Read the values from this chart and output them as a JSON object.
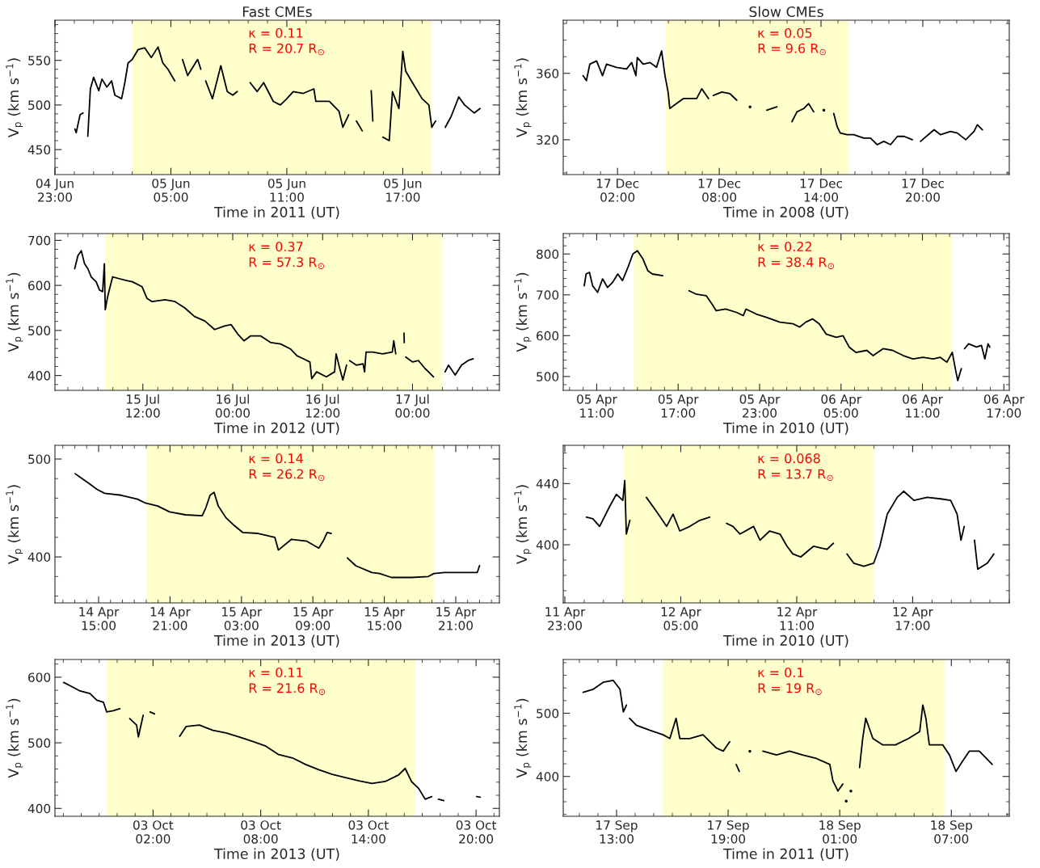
{
  "chart_data": [
    {
      "type": "line",
      "title": "Fast CMEs",
      "xlabel": "Time in 2011 (UT)",
      "ylabel": "V$_{p}$ (km s$^{−1}$)",
      "xlim": [
        "2011-06-04T23:00",
        "2011-06-05T22:00"
      ],
      "xticks": [
        {
          "value": "2011-06-04T23:00",
          "label": "04 Jun\n23:00"
        },
        {
          "value": "2011-06-05T05:00",
          "label": "05 Jun\n05:00"
        },
        {
          "value": "2011-06-05T11:00",
          "label": "05 Jun\n11:00"
        },
        {
          "value": "2011-06-05T17:00",
          "label": "05 Jun\n17:00"
        }
      ],
      "ylim": [
        422,
        595
      ],
      "yticks": [
        450,
        500,
        550
      ],
      "bands": [
        {
          "axis": "x",
          "from": "2011-06-05T03:00",
          "to": "2011-06-05T18:30",
          "color": "#ffffcc"
        }
      ],
      "annotations": [
        "κ = 0.11",
        "R = 20.7 R$_{⊙}$"
      ],
      "series": [
        {
          "color": "#000000",
          "x": [
            "2011-06-05T00:02",
            "2011-06-05T00:06",
            "2011-06-05T00:18",
            "2011-06-05T00:27",
            "2011-06-05T00:36",
            "2011-06-05T00:42",
            "2011-06-05T00:50",
            "2011-06-05T01:00",
            "2011-06-05T01:16",
            "2011-06-05T01:26",
            "2011-06-05T01:41",
            "2011-06-05T01:56",
            "2011-06-05T02:06",
            "2011-06-05T02:17",
            "2011-06-05T02:27",
            "2011-06-05T02:37",
            "2011-06-05T02:47",
            "2011-06-05T03:00",
            "2011-06-05T03:18",
            "2011-06-05T03:39",
            "2011-06-05T03:59",
            "2011-06-05T04:20",
            "2011-06-05T04:35",
            "2011-06-05T04:51",
            "2011-06-05T05:12",
            "2011-06-05T05:24",
            "2011-06-05T05:36",
            "2011-06-05T05:52",
            "2011-06-05T06:23",
            "2011-06-05T06:33",
            "2011-06-05T06:42",
            "2011-06-05T06:48",
            "2011-06-05T07:09",
            "2011-06-05T07:35",
            "2011-06-05T07:55",
            "2011-06-05T08:12",
            "2011-06-05T08:26",
            "2011-06-05T08:48",
            "2011-06-05T09:06",
            "2011-06-05T09:28",
            "2011-06-05T09:48",
            "2011-06-05T10:18",
            "2011-06-05T10:40",
            "2011-06-05T11:00",
            "2011-06-05T11:20",
            "2011-06-05T11:51",
            "2011-06-05T12:24",
            "2011-06-05T12:30",
            "2011-06-05T13:12",
            "2011-06-05T13:42",
            "2011-06-05T13:54",
            "2011-06-05T14:12",
            "2011-06-05T14:24",
            "2011-06-05T14:36",
            "2011-06-05T14:54",
            "2011-06-05T15:06",
            "2011-06-05T15:22",
            "2011-06-05T15:27",
            "2011-06-05T15:42",
            "2011-06-05T15:58",
            "2011-06-05T16:18",
            "2011-06-05T16:28",
            "2011-06-05T16:48",
            "2011-06-05T17:00",
            "2011-06-05T17:09",
            "2011-06-05T17:30",
            "2011-06-05T18:00",
            "2011-06-05T18:21",
            "2011-06-05T18:30",
            "2011-06-05T18:42",
            "2011-06-05T18:54",
            "2011-06-05T19:12",
            "2011-06-05T19:30",
            "2011-06-05T19:54",
            "2011-06-05T20:12",
            "2011-06-05T20:42",
            "2011-06-05T21:00"
          ],
          "values": [
            473,
            469,
            489,
            491,
            null,
            465,
            518,
            531,
            516,
            529,
            520,
            527,
            511,
            509,
            507,
            525,
            547,
            551,
            562,
            564,
            553,
            565,
            547,
            540,
            527,
            null,
            551,
            533,
            551,
            540,
            null,
            527,
            507,
            544,
            515,
            511,
            515,
            null,
            525,
            515,
            525,
            504,
            500,
            507,
            515,
            513,
            518,
            504,
            504,
            493,
            475,
            489,
            null,
            482,
            471,
            null,
            516,
            482,
            null,
            464,
            460,
            515,
            496,
            560,
            538,
            525,
            507,
            500,
            475,
            482,
            null,
            475,
            487,
            509,
            500,
            491,
            496
          ]
        }
      ]
    },
    {
      "type": "line",
      "title": "Slow CMEs",
      "xlabel": "Time in 2008 (UT)",
      "ylabel": "V$_{p}$ (km s$^{−1}$)",
      "xlim": [
        "2008-12-16T22:48",
        "2008-12-18T01:06"
      ],
      "xticks": [
        {
          "value": "2008-12-17T02:00",
          "label": "17 Dec\n02:00"
        },
        {
          "value": "2008-12-17T08:00",
          "label": "17 Dec\n08:00"
        },
        {
          "value": "2008-12-17T14:00",
          "label": "17 Dec\n14:00"
        },
        {
          "value": "2008-12-17T20:00",
          "label": "17 Dec\n20:00"
        }
      ],
      "ylim": [
        299,
        392
      ],
      "yticks": [
        320,
        360
      ],
      "bands": [
        {
          "axis": "x",
          "from": "2008-12-17T04:50",
          "to": "2008-12-17T15:38",
          "color": "#ffffcc"
        }
      ],
      "annotations": [
        "κ = 0.05",
        "R = 9.6 R$_{⊙}$"
      ],
      "series": [
        {
          "color": "#000000",
          "x": [
            "2008-12-16T23:58",
            "2008-12-17T00:10",
            "2008-12-17T00:22",
            "2008-12-17T00:46",
            "2008-12-17T01:07",
            "2008-12-17T01:21",
            "2008-12-17T01:56",
            "2008-12-17T02:32",
            "2008-12-17T02:50",
            "2008-12-17T03:05",
            "2008-12-17T03:10",
            "2008-12-17T03:31",
            "2008-12-17T03:55",
            "2008-12-17T04:18",
            "2008-12-17T04:36",
            "2008-12-17T04:48",
            "2008-12-17T04:59",
            "2008-12-17T05:05",
            "2008-12-17T05:29",
            "2008-12-17T05:53",
            "2008-12-17T06:17",
            "2008-12-17T06:40",
            "2008-12-17T06:58",
            "2008-12-17T07:22",
            "2008-12-17T07:30",
            "2008-12-17T07:39",
            "2008-12-17T08:09",
            "2008-12-17T08:38",
            "2008-12-17T09:02",
            "2008-12-17T09:24",
            "2008-12-17T09:49",
            "2008-12-17T10:18",
            "2008-12-17T10:48",
            "2008-12-17T11:24",
            "2008-12-17T11:54",
            "2008-12-17T12:17",
            "2008-12-17T12:35",
            "2008-12-17T12:59",
            "2008-12-17T13:16",
            "2008-12-17T13:34",
            "2008-12-17T13:54",
            "2008-12-17T14:10",
            "2008-12-17T14:30",
            "2008-12-17T14:45",
            "2008-12-17T14:57",
            "2008-12-17T15:08",
            "2008-12-17T15:32",
            "2008-12-17T15:56",
            "2008-12-17T16:31",
            "2008-12-17T16:55",
            "2008-12-17T17:19",
            "2008-12-17T17:42",
            "2008-12-17T18:06",
            "2008-12-17T18:30",
            "2008-12-17T18:54",
            "2008-12-17T19:23",
            "2008-12-17T19:36",
            "2008-12-17T19:52",
            "2008-12-17T20:40",
            "2008-12-17T21:03",
            "2008-12-17T21:38",
            "2008-12-17T22:02",
            "2008-12-17T22:32",
            "2008-12-17T23:01",
            "2008-12-17T23:13",
            "2008-12-17T23:31"
          ],
          "values": [
            358.6,
            355.6,
            365.5,
            367.5,
            358.6,
            365.5,
            363.6,
            362.6,
            366.5,
            358.6,
            369.5,
            365.5,
            366.5,
            363.6,
            373.5,
            358.6,
            348.7,
            338.8,
            341.8,
            344.8,
            344.8,
            344.8,
            350.7,
            344.8,
            null,
            346.7,
            348.7,
            347.7,
            343.8,
            null,
            339.8,
            null,
            337.8,
            339.8,
            null,
            330.9,
            336.8,
            338.8,
            341.8,
            336.8,
            null,
            337.8,
            null,
            335.8,
            327.9,
            324,
            323,
            323,
            321,
            321,
            317,
            319,
            317,
            322,
            322,
            320,
            null,
            319,
            326,
            323,
            325,
            324,
            320,
            325,
            329,
            326
          ]
        }
      ]
    },
    {
      "type": "line",
      "xlabel": "Time in 2012 (UT)",
      "ylabel": "V$_{p}$ (km s$^{−1}$)",
      "xlim": [
        "2012-07-15T00:16",
        "2012-07-17T11:36"
      ],
      "xticks": [
        {
          "value": "2012-07-15T12:00",
          "label": "15 Jul\n12:00"
        },
        {
          "value": "2012-07-16T00:00",
          "label": "16 Jul\n00:00"
        },
        {
          "value": "2012-07-16T12:00",
          "label": "16 Jul\n12:00"
        },
        {
          "value": "2012-07-17T00:00",
          "label": "17 Jul\n00:00"
        }
      ],
      "ylim": [
        367,
        715
      ],
      "yticks": [
        400,
        500,
        600,
        700
      ],
      "bands": [
        {
          "axis": "x",
          "from": "2012-07-15T06:59",
          "to": "2012-07-17T03:54",
          "color": "#ffffcc"
        }
      ],
      "annotations": [
        "κ = 0.37",
        "R = 57.3 R$_{⊙}$"
      ],
      "series": [
        {
          "color": "#000000",
          "x": [
            "2012-07-15T02:54",
            "2012-07-15T03:20",
            "2012-07-15T03:47",
            "2012-07-15T04:13",
            "2012-07-15T04:40",
            "2012-07-15T05:06",
            "2012-07-15T05:46",
            "2012-07-15T06:12",
            "2012-07-15T06:38",
            "2012-07-15T06:52",
            "2012-07-15T06:59",
            "2012-07-15T07:18",
            "2012-07-15T07:58",
            "2012-07-15T08:50",
            "2012-07-15T09:42",
            "2012-07-15T10:36",
            "2012-07-15T11:54",
            "2012-07-15T12:34",
            "2012-07-15T13:14",
            "2012-07-15T14:59",
            "2012-07-15T16:18",
            "2012-07-15T17:36",
            "2012-07-15T18:54",
            "2012-07-15T20:16",
            "2012-07-15T21:35",
            "2012-07-15T22:54",
            "2012-07-15T23:47",
            "2012-07-16T00:40",
            "2012-07-16T01:30",
            "2012-07-16T02:24",
            "2012-07-16T03:42",
            "2012-07-16T05:06",
            "2012-07-16T06:24",
            "2012-07-16T07:42",
            "2012-07-16T08:34",
            "2012-07-16T09:27",
            "2012-07-16T10:18",
            "2012-07-16T10:33",
            "2012-07-16T11:12",
            "2012-07-16T12:30",
            "2012-07-16T13:36",
            "2012-07-16T13:48",
            "2012-07-16T14:18",
            "2012-07-16T14:42",
            "2012-07-16T15:12",
            "2012-07-16T15:24",
            "2012-07-16T15:36",
            "2012-07-16T16:30",
            "2012-07-16T17:24",
            "2012-07-16T17:36",
            "2012-07-16T17:48",
            "2012-07-16T18:42",
            "2012-07-16T20:00",
            "2012-07-16T21:18",
            "2012-07-16T21:30",
            "2012-07-16T21:46",
            "2012-07-16T22:18",
            "2012-07-16T22:52",
            "2012-07-16T22:54",
            "2012-07-16T23:00",
            "2012-07-16T23:06",
            "2012-07-17T00:00",
            "2012-07-17T00:48",
            "2012-07-17T01:42",
            "2012-07-17T02:09",
            "2012-07-17T02:48",
            "2012-07-17T03:30",
            "2012-07-17T04:21",
            "2012-07-17T04:48",
            "2012-07-17T05:42",
            "2012-07-17T06:33",
            "2012-07-17T07:24",
            "2012-07-17T08:06"
          ],
          "values": [
            637,
            666,
            677,
            648,
            637,
            619,
            608,
            590,
            586,
            648,
            546,
            575,
            619,
            615,
            611,
            608,
            597,
            571,
            564,
            568,
            564,
            550,
            531,
            521,
            502,
            510,
            513,
            492,
            477,
            488,
            488,
            473,
            470,
            459,
            444,
            437,
            430,
            393,
            408,
            397,
            408,
            448,
            415,
            390,
            423,
            null,
            433,
            423,
            426,
            408,
            452,
            452,
            448,
            452,
            477,
            448,
            null,
            494,
            473,
            null,
            441,
            430,
            433,
            415,
            408,
            397,
            null,
            408,
            423,
            401,
            423,
            433,
            437
          ]
        }
      ]
    },
    {
      "type": "line",
      "xlabel": "Time in 2010 (UT)",
      "ylabel": "V$_{p}$ (km s$^{−1}$)",
      "xlim": [
        "2010-04-05T08:32",
        "2010-04-06T17:24"
      ],
      "xticks": [
        {
          "value": "2010-04-05T11:00",
          "label": "05 Apr\n11:00"
        },
        {
          "value": "2010-04-05T17:00",
          "label": "05 Apr\n17:00"
        },
        {
          "value": "2010-04-05T23:00",
          "label": "05 Apr\n23:00"
        },
        {
          "value": "2010-04-06T05:00",
          "label": "06 Apr\n05:00"
        },
        {
          "value": "2010-04-06T11:00",
          "label": "06 Apr\n11:00"
        },
        {
          "value": "2010-04-06T17:00",
          "label": "06 Apr\n17:00"
        }
      ],
      "ylim": [
        466,
        850
      ],
      "yticks": [
        500,
        600,
        700,
        800
      ],
      "bands": [
        {
          "axis": "x",
          "from": "2010-04-05T13:44",
          "to": "2010-04-06T13:12",
          "color": "#ffffcc"
        }
      ],
      "annotations": [
        "κ = 0.22",
        "R = 38.4 R$_{⊙}$"
      ],
      "series": [
        {
          "color": "#000000",
          "x": [
            "2010-04-05T10:05",
            "2010-04-05T10:13",
            "2010-04-05T10:28",
            "2010-04-05T10:42",
            "2010-04-05T11:04",
            "2010-04-05T11:26",
            "2010-04-05T11:48",
            "2010-04-05T12:11",
            "2010-04-05T12:33",
            "2010-04-05T12:54",
            "2010-04-05T13:18",
            "2010-04-05T13:40",
            "2010-04-05T14:00",
            "2010-04-05T14:24",
            "2010-04-05T14:46",
            "2010-04-05T15:06",
            "2010-04-05T15:52",
            "2010-04-05T16:48",
            "2010-04-05T17:48",
            "2010-04-05T18:18",
            "2010-04-05T19:04",
            "2010-04-05T19:34",
            "2010-04-05T19:48",
            "2010-04-05T20:30",
            "2010-04-05T21:18",
            "2010-04-05T21:48",
            "2010-04-05T22:00",
            "2010-04-05T22:45",
            "2010-04-05T23:30",
            "2010-04-06T00:30",
            "2010-04-06T01:28",
            "2010-04-06T01:57",
            "2010-04-06T02:24",
            "2010-04-06T02:54",
            "2010-04-06T03:24",
            "2010-04-06T03:54",
            "2010-04-06T04:39",
            "2010-04-06T05:09",
            "2010-04-06T05:36",
            "2010-04-06T06:06",
            "2010-04-06T06:54",
            "2010-04-06T07:22",
            "2010-04-06T08:06",
            "2010-04-06T08:48",
            "2010-04-06T09:36",
            "2010-04-06T10:18",
            "2010-04-06T11:03",
            "2010-04-06T11:48",
            "2010-04-06T12:18",
            "2010-04-06T12:48",
            "2010-04-06T13:12",
            "2010-04-06T13:24",
            "2010-04-06T13:36",
            "2010-04-06T13:52",
            "2010-04-06T14:00",
            "2010-04-06T14:06",
            "2010-04-06T14:24",
            "2010-04-06T14:59",
            "2010-04-06T15:21",
            "2010-04-06T15:36",
            "2010-04-06T15:50",
            "2010-04-06T15:58"
          ],
          "values": [
            722,
            751,
            755,
            722,
            706,
            739,
            718,
            731,
            751,
            735,
            767,
            800,
            808,
            788,
            759,
            751,
            747,
            null,
            710,
            702,
            698,
            674,
            661,
            665,
            657,
            649,
            665,
            653,
            645,
            633,
            629,
            621,
            633,
            641,
            629,
            604,
            596,
            600,
            572,
            559,
            564,
            551,
            568,
            564,
            551,
            543,
            547,
            543,
            547,
            535,
            559,
            523,
            490,
            519,
            null,
            568,
            580,
            572,
            576,
            543,
            580,
            572
          ]
        }
      ]
    },
    {
      "type": "line",
      "xlabel": "Time in 2013 (UT)",
      "ylabel": "V$_{p}$ (km s$^{−1}$)",
      "xlim": [
        "2013-04-14T11:20",
        "2013-04-16T00:40"
      ],
      "xticks": [
        {
          "value": "2013-04-14T15:00",
          "label": "14 Apr\n15:00"
        },
        {
          "value": "2013-04-14T21:00",
          "label": "14 Apr\n21:00"
        },
        {
          "value": "2013-04-15T03:00",
          "label": "15 Apr\n03:00"
        },
        {
          "value": "2013-04-15T09:00",
          "label": "15 Apr\n09:00"
        },
        {
          "value": "2013-04-15T15:00",
          "label": "15 Apr\n15:00"
        },
        {
          "value": "2013-04-15T21:00",
          "label": "15 Apr\n21:00"
        }
      ],
      "ylim": [
        353,
        514
      ],
      "yticks": [
        400,
        500
      ],
      "bands": [
        {
          "axis": "x",
          "from": "2013-04-14T19:00",
          "to": "2013-04-15T19:10",
          "color": "#ffffcc"
        }
      ],
      "annotations": [
        "κ = 0.14",
        "R = 26.2 R$_{⊙}$"
      ],
      "series": [
        {
          "color": "#000000",
          "x": [
            "2013-04-14T13:02",
            "2013-04-14T13:30",
            "2013-04-14T14:12",
            "2013-04-14T14:52",
            "2013-04-14T15:30",
            "2013-04-14T16:54",
            "2013-04-14T18:16",
            "2013-04-14T18:56",
            "2013-04-14T19:58",
            "2013-04-14T20:58",
            "2013-04-14T22:18",
            "2013-04-14T23:42",
            "2013-04-15T00:00",
            "2013-04-15T00:22",
            "2013-04-15T00:42",
            "2013-04-15T01:03",
            "2013-04-15T01:42",
            "2013-04-15T02:24",
            "2013-04-15T03:06",
            "2013-04-15T04:24",
            "2013-04-15T05:48",
            "2013-04-15T06:06",
            "2013-04-15T07:12",
            "2013-04-15T08:30",
            "2013-04-15T09:30",
            "2013-04-15T09:54",
            "2013-04-15T10:12",
            "2013-04-15T10:33",
            "2013-04-15T11:12",
            "2013-04-15T11:54",
            "2013-04-15T12:36",
            "2013-04-15T13:57",
            "2013-04-15T14:36",
            "2013-04-15T15:36",
            "2013-04-15T17:18",
            "2013-04-15T18:42",
            "2013-04-15T19:10",
            "2013-04-15T20:03",
            "2013-04-15T21:24",
            "2013-04-15T22:48",
            "2013-04-15T23:00"
          ],
          "values": [
            485,
            481,
            475,
            469,
            465,
            463,
            459,
            455,
            452,
            446,
            443,
            442,
            450,
            463,
            466,
            452,
            440,
            432,
            425,
            424,
            420,
            407,
            418,
            416,
            409,
            417,
            425,
            424,
            null,
            399,
            391,
            384,
            383,
            379,
            379,
            380,
            383,
            384,
            384,
            384,
            391
          ]
        }
      ]
    },
    {
      "type": "line",
      "xlabel": "Time in 2010 (UT)",
      "ylabel": "V$_{p}$ (km s$^{−1}$)",
      "xlim": [
        "2010-04-11T22:55",
        "2010-04-12T22:00"
      ],
      "xticks": [
        {
          "value": "2010-04-11T23:00",
          "label": "11 Apr\n23:00"
        },
        {
          "value": "2010-04-12T05:00",
          "label": "12 Apr\n05:00"
        },
        {
          "value": "2010-04-12T11:00",
          "label": "12 Apr\n11:00"
        },
        {
          "value": "2010-04-12T17:00",
          "label": "12 Apr\n17:00"
        }
      ],
      "ylim": [
        362,
        465
      ],
      "yticks": [
        400,
        440
      ],
      "bands": [
        {
          "axis": "x",
          "from": "2010-04-12T02:03",
          "to": "2010-04-12T15:00",
          "color": "#ffffcc"
        }
      ],
      "annotations": [
        "κ = 0.068",
        "R = 13.7 R$_{⊙}$"
      ],
      "series": [
        {
          "color": "#000000",
          "x": [
            "2010-04-12T00:07",
            "2010-04-12T00:27",
            "2010-04-12T00:48",
            "2010-04-12T01:19",
            "2010-04-12T01:40",
            "2010-04-12T02:00",
            "2010-04-12T02:06",
            "2010-04-12T02:11",
            "2010-04-12T02:22",
            "2010-04-12T02:48",
            "2010-04-12T03:13",
            "2010-04-12T03:44",
            "2010-04-12T04:16",
            "2010-04-12T04:36",
            "2010-04-12T04:57",
            "2010-04-12T05:28",
            "2010-04-12T05:59",
            "2010-04-12T06:30",
            "2010-04-12T06:54",
            "2010-04-12T07:22",
            "2010-04-12T07:42",
            "2010-04-12T08:04",
            "2010-04-12T08:46",
            "2010-04-12T09:06",
            "2010-04-12T09:36",
            "2010-04-12T10:08",
            "2010-04-12T10:30",
            "2010-04-12T10:48",
            "2010-04-12T11:12",
            "2010-04-12T11:52",
            "2010-04-12T12:34",
            "2010-04-12T12:54",
            "2010-04-12T13:12",
            "2010-04-12T13:36",
            "2010-04-12T13:57",
            "2010-04-12T14:28",
            "2010-04-12T14:59",
            "2010-04-12T15:18",
            "2010-04-12T15:41",
            "2010-04-12T16:12",
            "2010-04-12T16:32",
            "2010-04-12T17:04",
            "2010-04-12T17:45",
            "2010-04-12T18:27",
            "2010-04-12T18:58",
            "2010-04-12T19:18",
            "2010-04-12T19:30",
            "2010-04-12T19:40",
            "2010-04-12T19:54",
            "2010-04-12T20:12",
            "2010-04-12T20:22",
            "2010-04-12T20:52",
            "2010-04-12T21:12"
          ],
          "values": [
            418,
            417,
            412,
            425,
            433,
            429,
            442,
            407,
            416,
            null,
            431,
            422,
            412,
            420,
            409,
            412,
            416,
            418,
            null,
            414,
            412,
            407,
            412,
            403,
            409,
            407,
            399,
            394,
            392,
            399,
            397,
            401,
            null,
            394,
            388,
            386,
            388,
            399,
            420,
            431,
            435,
            429,
            431,
            430,
            429,
            420,
            403,
            412,
            null,
            403,
            384,
            388,
            394
          ]
        }
      ]
    },
    {
      "type": "line",
      "xlabel": "Time in 2013 (UT)",
      "ylabel": "V$_{p}$ (km s$^{−1}$)",
      "xlim": [
        "2013-10-02T20:32",
        "2013-10-03T21:18"
      ],
      "xticks": [
        {
          "value": "2013-10-03T02:00",
          "label": "03 Oct\n02:00"
        },
        {
          "value": "2013-10-03T08:00",
          "label": "03 Oct\n08:00"
        },
        {
          "value": "2013-10-03T14:00",
          "label": "03 Oct\n14:00"
        },
        {
          "value": "2013-10-03T20:00",
          "label": "03 Oct\n20:00"
        }
      ],
      "ylim": [
        388,
        627
      ],
      "yticks": [
        400,
        500,
        600
      ],
      "bands": [
        {
          "axis": "x",
          "from": "2013-10-02T23:25",
          "to": "2013-10-03T16:36",
          "color": "#ffffcc"
        }
      ],
      "annotations": [
        "κ = 0.11",
        "R = 21.6 R$_{⊙}$"
      ],
      "series": [
        {
          "color": "#000000",
          "x": [
            "2013-10-02T21:01",
            "2013-10-02T21:23",
            "2013-10-02T21:56",
            "2013-10-02T22:29",
            "2013-10-02T22:52",
            "2013-10-02T23:14",
            "2013-10-02T23:25",
            "2013-10-02T23:47",
            "2013-10-03T00:09",
            "2013-10-03T00:24",
            "2013-10-03T00:42",
            "2013-10-03T01:05",
            "2013-10-03T01:11",
            "2013-10-03T01:27",
            "2013-10-03T01:42",
            "2013-10-03T01:50",
            "2013-10-03T02:05",
            "2013-10-03T02:30",
            "2013-10-03T03:29",
            "2013-10-03T03:51",
            "2013-10-03T04:35",
            "2013-10-03T05:20",
            "2013-10-03T06:04",
            "2013-10-03T06:48",
            "2013-10-03T07:33",
            "2013-10-03T08:17",
            "2013-10-03T09:00",
            "2013-10-03T09:46",
            "2013-10-03T10:30",
            "2013-10-03T11:14",
            "2013-10-03T11:59",
            "2013-10-03T12:43",
            "2013-10-03T13:28",
            "2013-10-03T14:12",
            "2013-10-03T14:56",
            "2013-10-03T15:41",
            "2013-10-03T16:03",
            "2013-10-03T16:24",
            "2013-10-03T16:47",
            "2013-10-03T17:10",
            "2013-10-03T17:32",
            "2013-10-03T17:42",
            "2013-10-03T17:54",
            "2013-10-03T18:12",
            "2013-10-03T18:30",
            "2013-10-03T19:00",
            "2013-10-03T20:02",
            "2013-10-03T20:14"
          ],
          "values": [
            592,
            587,
            579,
            575,
            565,
            562,
            547,
            549,
            552,
            null,
            537,
            527,
            509,
            542,
            null,
            547,
            544,
            null,
            510,
            525,
            527,
            519,
            515,
            509,
            502,
            495,
            482,
            477,
            467,
            459,
            452,
            447,
            442,
            438,
            441,
            451,
            461,
            441,
            431,
            414,
            418,
            null,
            414,
            412,
            null,
            null,
            418,
            417
          ]
        }
      ]
    },
    {
      "type": "line",
      "xlabel": "Time in 2011 (UT)",
      "ylabel": "V$_{p}$ (km s$^{−1}$)",
      "xlim": [
        "2011-09-17T10:08",
        "2011-09-18T10:07"
      ],
      "xticks": [
        {
          "value": "2011-09-17T13:00",
          "label": "17 Sep\n13:00"
        },
        {
          "value": "2011-09-17T19:00",
          "label": "17 Sep\n19:00"
        },
        {
          "value": "2011-09-18T01:00",
          "label": "18 Sep\n01:00"
        },
        {
          "value": "2011-09-18T07:00",
          "label": "18 Sep\n07:00"
        }
      ],
      "ylim": [
        337,
        585
      ],
      "yticks": [
        400,
        500
      ],
      "bands": [
        {
          "axis": "x",
          "from": "2011-09-17T15:30",
          "to": "2011-09-18T06:38",
          "color": "#ffffcc"
        }
      ],
      "annotations": [
        "κ = 0.1",
        "R = 19 R$_{⊙}$"
      ],
      "series": [
        {
          "color": "#000000",
          "x": [
            "2011-09-17T11:12",
            "2011-09-17T11:45",
            "2011-09-17T12:17",
            "2011-09-17T12:49",
            "2011-09-17T13:11",
            "2011-09-17T13:22",
            "2011-09-17T13:32",
            "2011-09-17T13:36",
            "2011-09-17T13:42",
            "2011-09-17T14:04",
            "2011-09-17T14:48",
            "2011-09-17T15:30",
            "2011-09-17T15:52",
            "2011-09-17T16:12",
            "2011-09-17T16:24",
            "2011-09-17T16:56",
            "2011-09-17T17:39",
            "2011-09-17T18:22",
            "2011-09-17T18:44",
            "2011-09-17T19:05",
            "2011-09-17T19:18",
            "2011-09-17T19:26",
            "2011-09-17T19:36",
            "2011-09-17T19:54",
            "2011-09-17T20:10",
            "2011-09-17T20:30",
            "2011-09-17T20:52",
            "2011-09-17T21:36",
            "2011-09-17T22:18",
            "2011-09-17T23:00",
            "2011-09-17T23:42",
            "2011-09-18T00:28",
            "2011-09-18T00:38",
            "2011-09-18T00:54",
            "2011-09-18T01:10",
            "2011-09-18T01:15",
            "2011-09-18T01:21",
            "2011-09-18T01:30",
            "2011-09-18T01:36",
            "2011-09-18T01:48",
            "2011-09-18T02:04",
            "2011-09-18T02:14",
            "2011-09-18T02:24",
            "2011-09-18T02:47",
            "2011-09-18T03:18",
            "2011-09-18T04:00",
            "2011-09-18T04:42",
            "2011-09-18T05:18",
            "2011-09-18T05:28",
            "2011-09-18T05:38",
            "2011-09-18T05:49",
            "2011-09-18T06:32",
            "2011-09-18T06:54",
            "2011-09-18T07:15",
            "2011-09-18T07:36",
            "2011-09-18T07:58",
            "2011-09-18T08:30",
            "2011-09-18T09:02",
            "2011-09-18T09:12"
          ],
          "values": [
            533,
            538,
            549,
            552,
            538,
            502,
            513,
            null,
            492,
            481,
            473,
            466,
            460,
            492,
            460,
            460,
            466,
            445,
            440,
            455,
            null,
            419,
            408,
            null,
            440,
            null,
            440,
            434,
            440,
            434,
            429,
            419,
            393,
            377,
            388,
            null,
            361,
            null,
            377,
            null,
            414,
            460,
            492,
            460,
            450,
            450,
            460,
            471,
            513,
            492,
            450,
            450,
            434,
            408,
            424,
            440,
            440,
            424,
            419
          ]
        }
      ]
    }
  ]
}
